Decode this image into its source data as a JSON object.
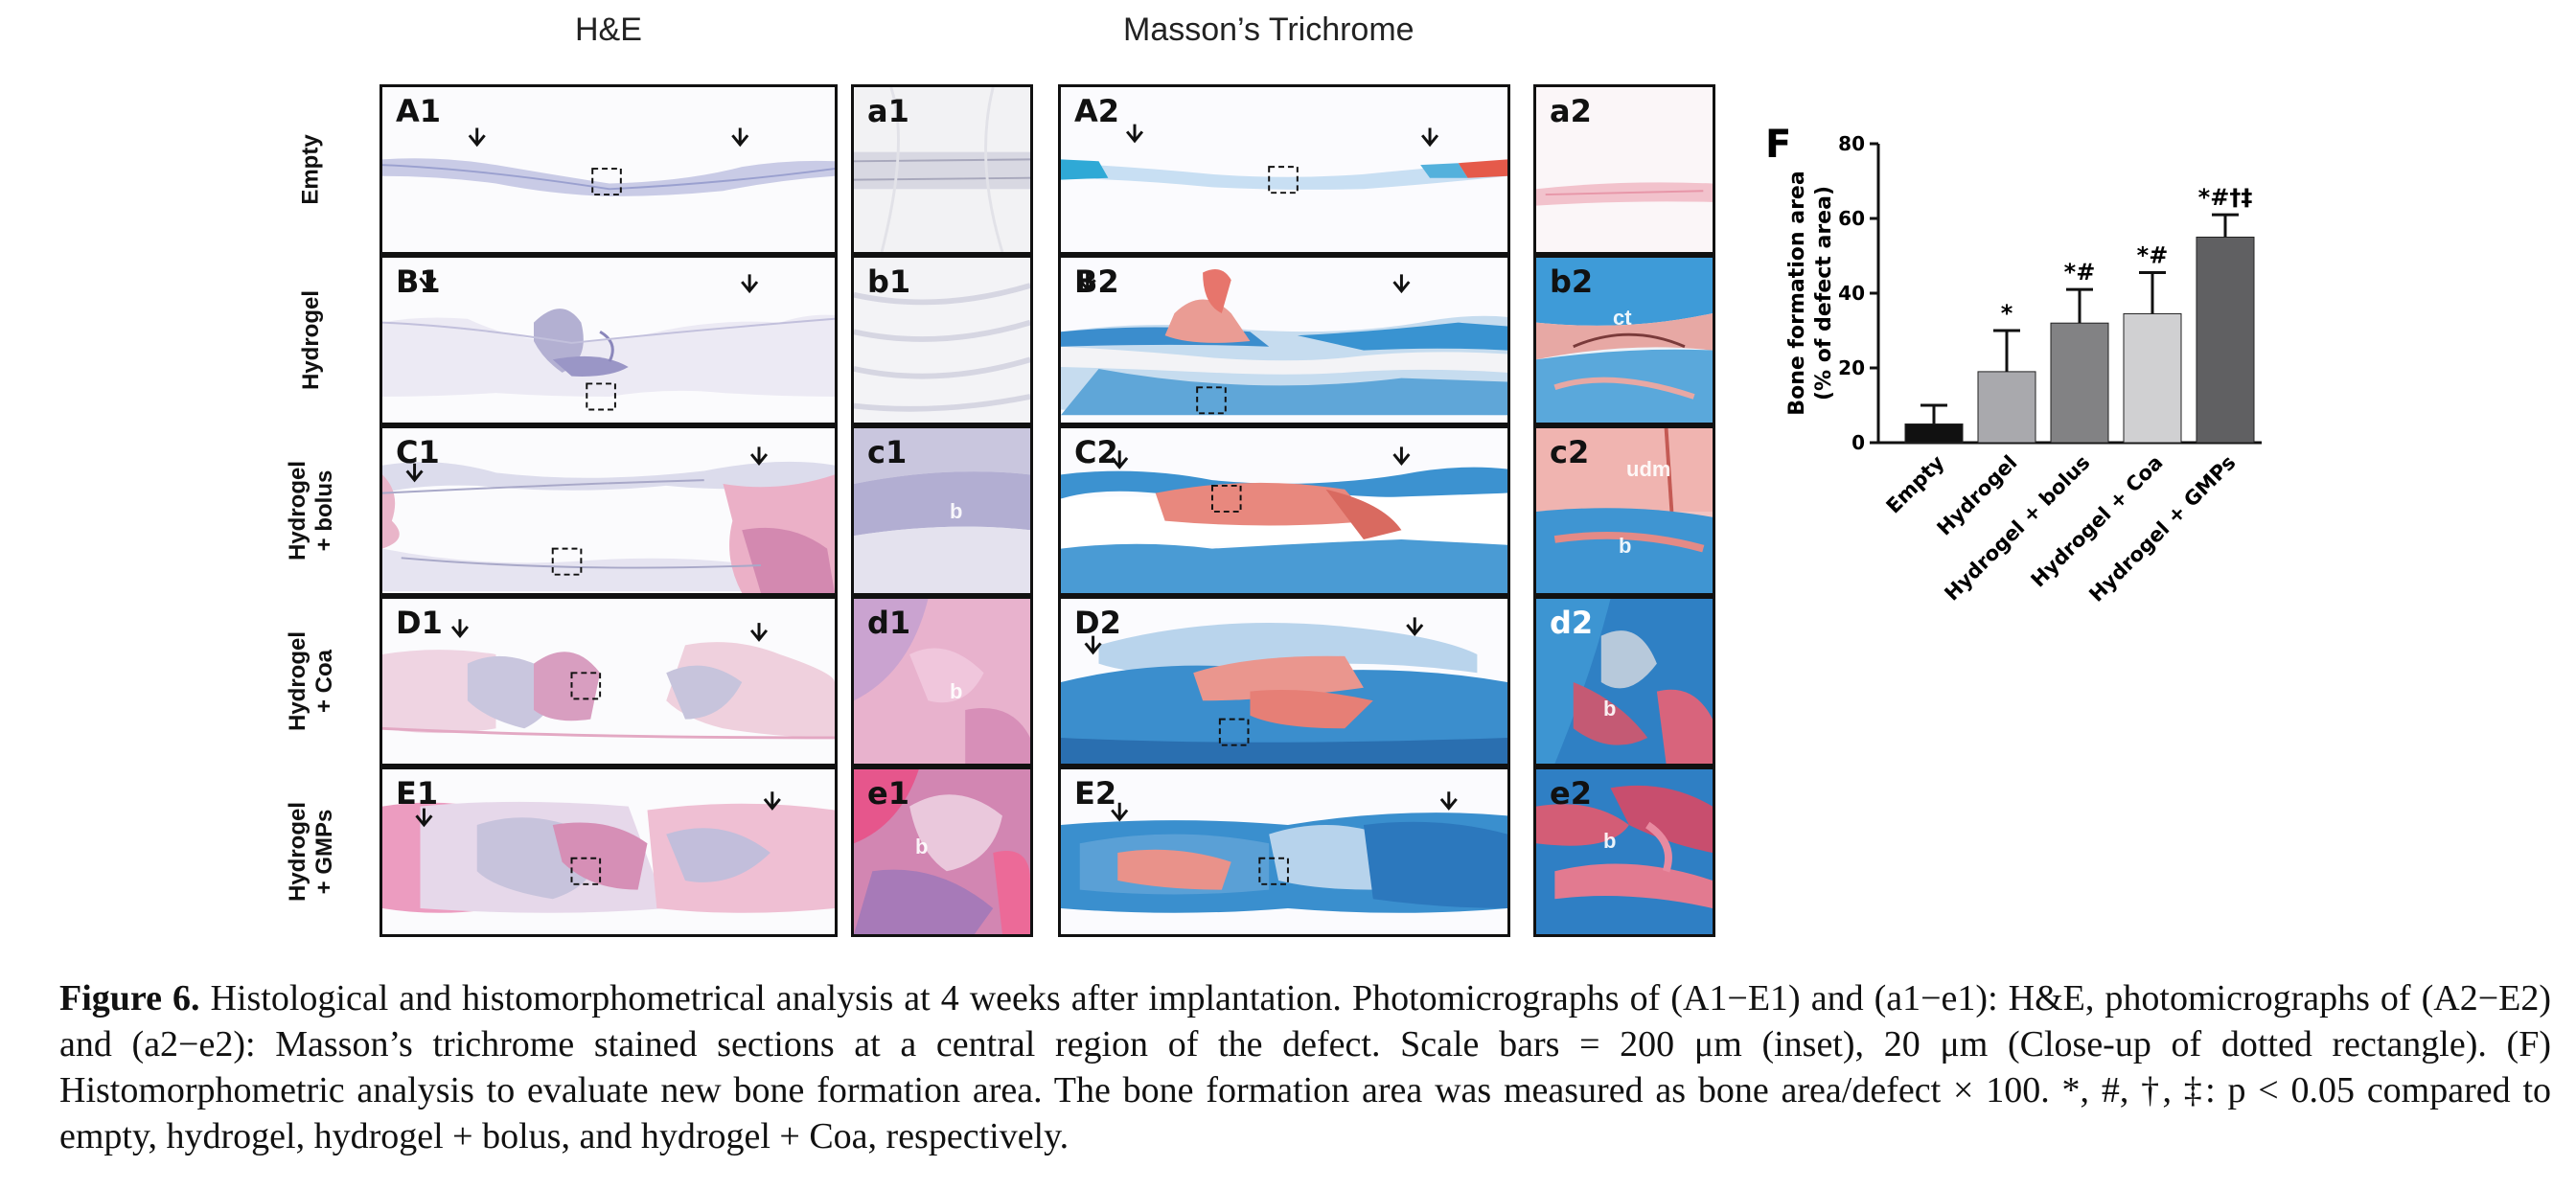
{
  "columns": {
    "he": "H&E",
    "masson": "Masson’s Trichrome"
  },
  "rows": [
    {
      "label": "Empty",
      "he": "A1",
      "he_inset": "a1",
      "mt": "A2",
      "mt_inset": "a2"
    },
    {
      "label": "Hydrogel",
      "he": "B1",
      "he_inset": "b1",
      "mt": "B2",
      "mt_inset": "b2"
    },
    {
      "label": "Hydrogel + bolus",
      "he": "C1",
      "he_inset": "c1",
      "mt": "C2",
      "mt_inset": "c2"
    },
    {
      "label": "Hydrogel + Coa",
      "he": "D1",
      "he_inset": "d1",
      "mt": "D2",
      "mt_inset": "d2"
    },
    {
      "label": "Hydrogel + GMPs",
      "he": "E1",
      "he_inset": "e1",
      "mt": "E2",
      "mt_inset": "e2"
    }
  ],
  "row_labels": {
    "r1": [
      "Empty"
    ],
    "r2": [
      "Hydrogel"
    ],
    "r3": [
      "Hydrogel",
      "+ bolus"
    ],
    "r4": [
      "Hydrogel",
      "+ Coa"
    ],
    "r5": [
      "Hydrogel",
      "+ GMPs"
    ]
  },
  "inset_notes": {
    "c1": "b",
    "c2_udm": "udm",
    "c2_b": "b",
    "d1": "b",
    "d2": "b",
    "e1": "b",
    "e2": "b",
    "b2": "ct"
  },
  "colors": {
    "he_pink": "#e8a6c4",
    "he_purple": "#8a78b8",
    "mt_blue": "#2f7fc4",
    "mt_red": "#e48a86"
  },
  "chart_data": {
    "type": "bar",
    "panel_label": "F",
    "ylabel": [
      "Bone formation area",
      "(% of defect area)"
    ],
    "ylim": [
      0,
      80
    ],
    "yticks": [
      0,
      20,
      40,
      60,
      80
    ],
    "categories": [
      "Empty",
      "Hydrogel",
      "Hydrogel + bolus",
      "Hydrogel + Coa",
      "Hydrogel + GMPs"
    ],
    "values": [
      5,
      19,
      32,
      34.5,
      55
    ],
    "errors": [
      5,
      11,
      9,
      11,
      6
    ],
    "colors": [
      "#111111",
      "#a9a9ad",
      "#828284",
      "#d0d0d2",
      "#606062"
    ],
    "significance": [
      "",
      "*",
      "*#",
      "*#",
      "*#†‡"
    ]
  },
  "caption": {
    "label": "Figure 6.",
    "text": "Histological and histomorphometrical analysis at 4 weeks after implantation. Photomicrographs of (A1−E1) and (a1−e1): H&E, photomicrographs of (A2−E2) and (a2−e2): Masson’s trichrome stained sections at a central region of the defect. Scale bars = 200 μm (inset), 20 μm (Close-up of dotted rectangle). (F) Histomorphometric analysis to evaluate new bone formation area. The bone formation area was measured as bone area/defect × 100. *, #, †, ‡: p < 0.05 compared to empty, hydrogel, hydrogel + bolus, and hydrogel + Coa, respectively."
  }
}
